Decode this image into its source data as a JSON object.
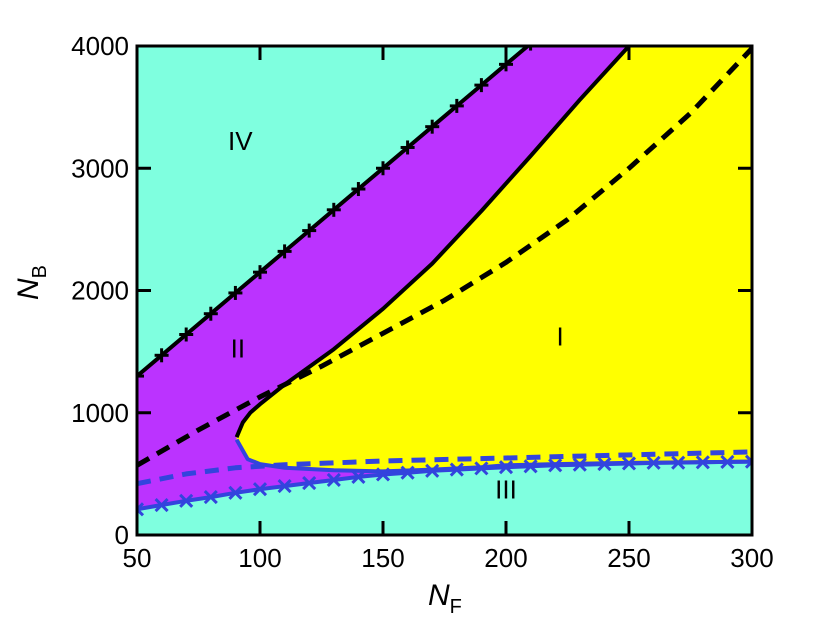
{
  "chart_data": {
    "type": "area",
    "title": "",
    "xlabel": "N",
    "xlabel_sub": "F",
    "ylabel": "N",
    "ylabel_sub": "B",
    "xlim": [
      50,
      300
    ],
    "ylim": [
      0,
      4000
    ],
    "x_ticks": [
      50,
      100,
      150,
      200,
      250,
      300
    ],
    "y_ticks": [
      0,
      1000,
      2000,
      3000,
      4000
    ],
    "grid": false,
    "legend": "none",
    "colors": {
      "region_I": "#ffff00",
      "region_II": "#bb33ff",
      "region_III_IV": "#7fffdf",
      "black_boundary": "#000000",
      "blue_boundary": "#3344dd"
    },
    "regions": [
      {
        "label": "I",
        "x": 222,
        "y": 1550
      },
      {
        "label": "II",
        "x": 91,
        "y": 1450
      },
      {
        "label": "III",
        "x": 200,
        "y": 300
      },
      {
        "label": "IV",
        "x": 92,
        "y": 3150
      }
    ],
    "series": [
      {
        "style": "solid",
        "color": "black",
        "marker": "plus",
        "x": [
          50,
          60,
          70,
          80,
          90,
          100,
          110,
          120,
          130,
          140,
          150,
          160,
          170,
          180,
          190,
          200,
          210,
          220
        ],
        "y": [
          1300,
          1470,
          1640,
          1810,
          1980,
          2150,
          2320,
          2490,
          2660,
          2830,
          3000,
          3170,
          3340,
          3510,
          3680,
          3850,
          4020,
          4190
        ]
      },
      {
        "style": "solid",
        "color": "black",
        "marker": "none",
        "x": [
          90.5,
          93,
          96,
          100,
          110,
          130,
          150,
          170,
          190,
          210,
          230,
          250
        ],
        "y": [
          800,
          920,
          1000,
          1070,
          1230,
          1520,
          1850,
          2220,
          2650,
          3100,
          3560,
          4000
        ]
      },
      {
        "style": "dashed",
        "color": "black",
        "marker": "none",
        "x": [
          50,
          75,
          100,
          125,
          150,
          175,
          200,
          225,
          250,
          275,
          300
        ],
        "y": [
          570,
          860,
          1130,
          1380,
          1650,
          1920,
          2230,
          2580,
          3000,
          3450,
          3980
        ]
      },
      {
        "style": "dashed",
        "color": "blue",
        "marker": "none",
        "x": [
          50,
          70,
          90,
          110,
          130,
          150,
          170,
          200,
          230,
          260,
          300
        ],
        "y": [
          420,
          500,
          550,
          575,
          590,
          605,
          615,
          630,
          645,
          660,
          680
        ]
      },
      {
        "style": "solid",
        "color": "blue",
        "marker": "none",
        "x": [
          90.5,
          95,
          100,
          110,
          130,
          150,
          170,
          190,
          200,
          220,
          250,
          300
        ],
        "y": [
          780,
          620,
          580,
          550,
          530,
          520,
          535,
          555,
          570,
          580,
          590,
          600
        ]
      },
      {
        "style": "solid",
        "color": "blue",
        "marker": "cross",
        "x": [
          50,
          60,
          70,
          80,
          90,
          100,
          110,
          120,
          130,
          140,
          150,
          160,
          170,
          180,
          190,
          200,
          210,
          220,
          230,
          240,
          250,
          260,
          270,
          280,
          290,
          300
        ],
        "y": [
          210,
          245,
          280,
          310,
          345,
          375,
          400,
          425,
          450,
          475,
          495,
          510,
          525,
          535,
          545,
          555,
          562,
          570,
          575,
          580,
          585,
          590,
          592,
          595,
          598,
          600
        ]
      }
    ]
  }
}
